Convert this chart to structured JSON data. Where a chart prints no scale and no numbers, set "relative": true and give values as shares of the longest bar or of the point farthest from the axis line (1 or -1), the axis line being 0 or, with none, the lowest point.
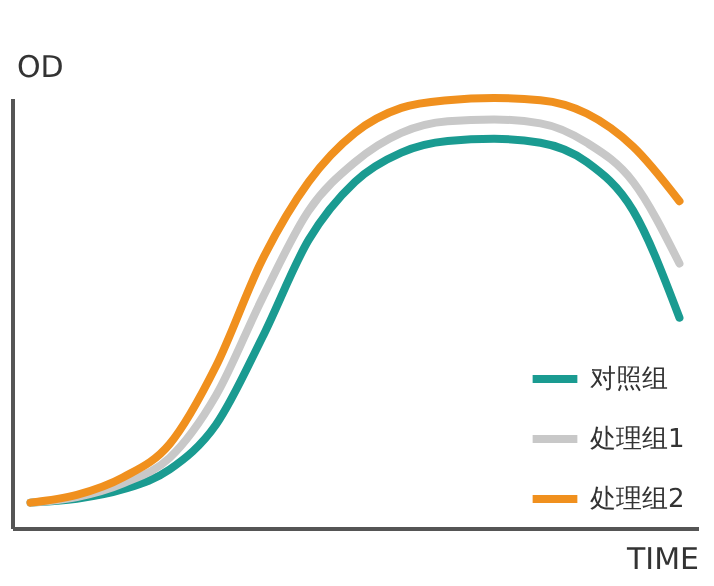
{
  "chart_data": {
    "type": "line",
    "relative": true,
    "xlabel": "TIME",
    "ylabel": "OD",
    "legend": "bottom right",
    "grid": false,
    "marker": "none",
    "line_style": "solid",
    "categories": [
      null,
      null,
      null,
      null,
      null,
      null,
      null,
      null,
      null,
      null,
      null,
      null,
      null,
      null,
      null
    ],
    "series": [
      {
        "name": "对照组",
        "color": "#1a9b91",
        "values": [
          0.059,
          0.068,
          0.09,
          0.136,
          0.24,
          0.443,
          0.67,
          0.805,
          0.873,
          0.9,
          0.905,
          0.896,
          0.851,
          0.738,
          0.489
        ]
      },
      {
        "name": "处理组1",
        "color": "#c8c8c8",
        "values": [
          0.059,
          0.072,
          0.104,
          0.163,
          0.308,
          0.534,
          0.738,
          0.851,
          0.919,
          0.946,
          0.95,
          0.941,
          0.896,
          0.805,
          0.615
        ]
      },
      {
        "name": "处理组2",
        "color": "#f0901e",
        "values": [
          0.059,
          0.077,
          0.118,
          0.195,
          0.376,
          0.624,
          0.805,
          0.919,
          0.977,
          0.995,
          1,
          0.995,
          0.964,
          0.887,
          0.76
        ]
      }
    ]
  }
}
